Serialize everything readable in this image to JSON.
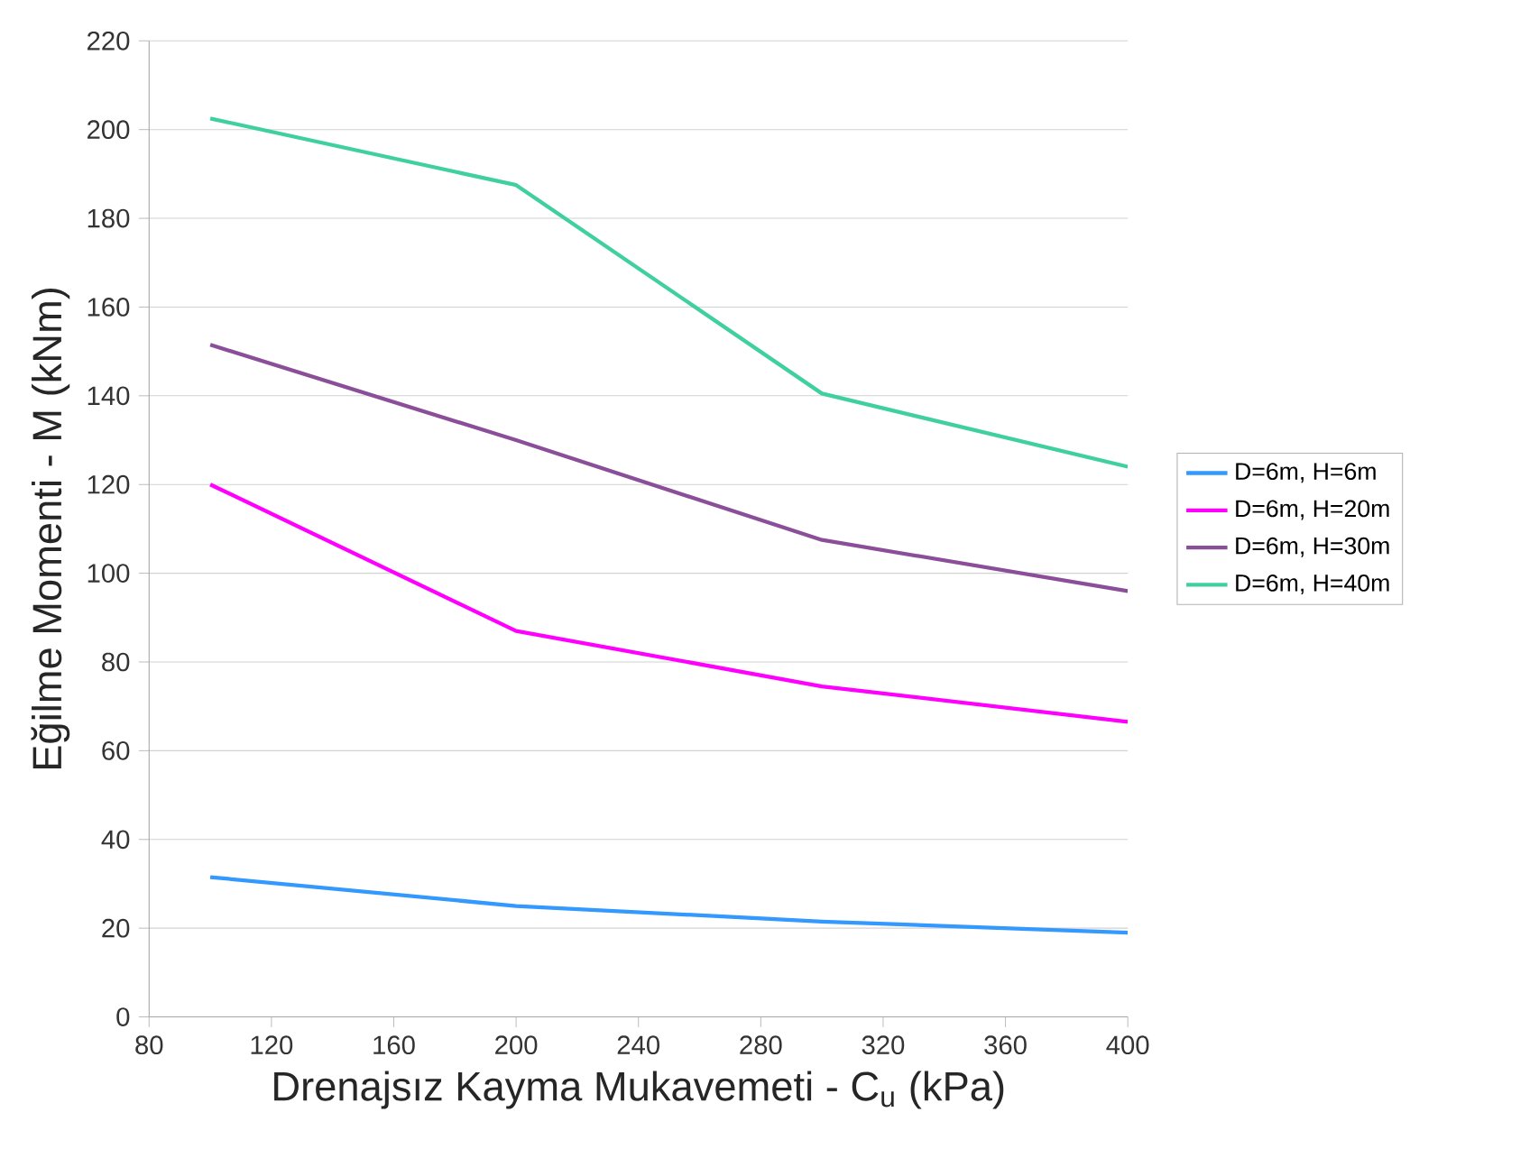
{
  "chart_data": {
    "type": "line",
    "xlabel": "Drenajsız Kayma Mukavemeti - C$_{u}$ (kPa)",
    "ylabel": "Eğilme Momenti - M (kNm)",
    "x": [
      100,
      200,
      300,
      400
    ],
    "series": [
      {
        "name": "D=6m, H=6m",
        "color": "#3399ff",
        "values": [
          31.5,
          25,
          21.5,
          19
        ]
      },
      {
        "name": "D=6m, H=20m",
        "color": "#ff00ff",
        "values": [
          120,
          87,
          74.5,
          66.5
        ]
      },
      {
        "name": "D=6m, H=30m",
        "color": "#8b4f9a",
        "values": [
          151.5,
          130,
          107.5,
          96
        ]
      },
      {
        "name": "D=6m, H=40m",
        "color": "#40d0a0",
        "values": [
          202.5,
          187.5,
          140.5,
          124
        ]
      }
    ],
    "xlim": [
      80,
      400
    ],
    "xticks": [
      80,
      120,
      160,
      200,
      240,
      280,
      320,
      360,
      400
    ],
    "ylim": [
      0,
      220
    ],
    "yticks": [
      0,
      20,
      40,
      60,
      80,
      100,
      120,
      140,
      160,
      180,
      200,
      220
    ],
    "grid": "y",
    "legend": "right",
    "marker": "none",
    "line_style": "solid"
  }
}
